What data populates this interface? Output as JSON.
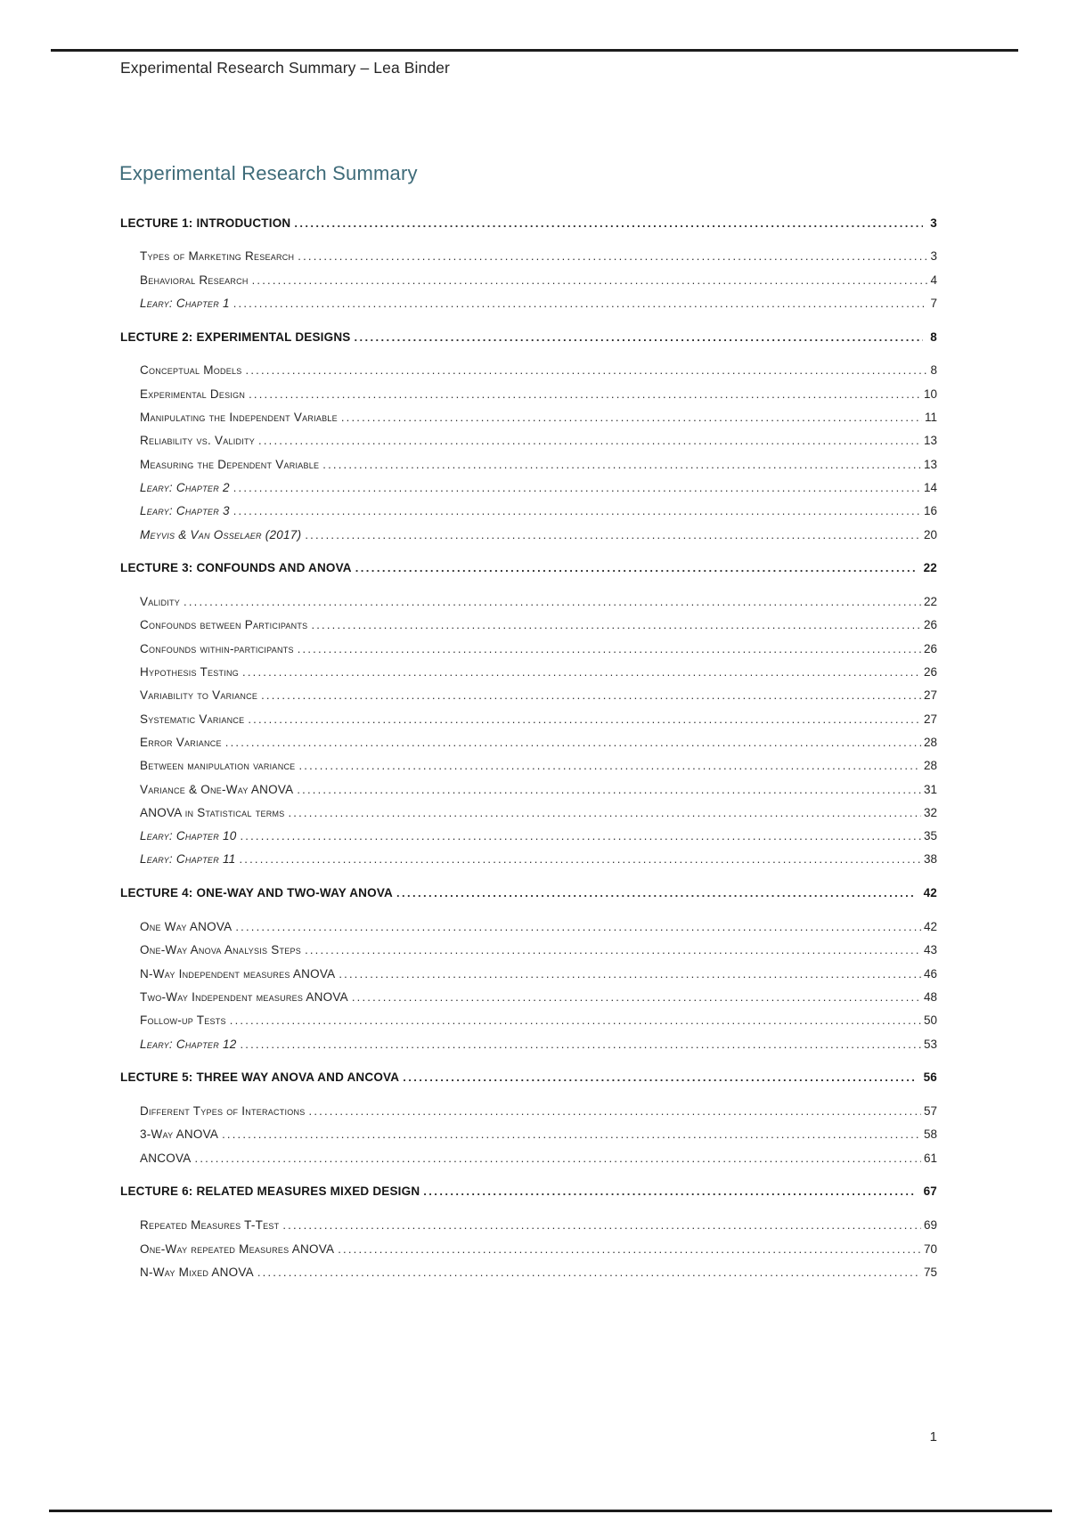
{
  "page": {
    "header": "Experimental Research Summary – Lea Binder",
    "title": "Experimental Research Summary",
    "title_color": "#3e6b79",
    "footer_page_number": "1"
  },
  "toc": {
    "sections": [
      {
        "label": "LECTURE 1: INTRODUCTION",
        "page": "3",
        "items": [
          {
            "label": "Types of Marketing Research",
            "page": "3",
            "italic": false
          },
          {
            "label": "Behavioral Research",
            "page": "4",
            "italic": false
          },
          {
            "label": "Leary: Chapter 1",
            "page": "7",
            "italic": true
          }
        ]
      },
      {
        "label": "LECTURE 2: EXPERIMENTAL DESIGNS",
        "page": "8",
        "items": [
          {
            "label": "Conceptual Models",
            "page": "8",
            "italic": false
          },
          {
            "label": "Experimental Design",
            "page": "10",
            "italic": false
          },
          {
            "label": "Manipulating the Independent Variable",
            "page": "11",
            "italic": false
          },
          {
            "label": "Reliability vs. Validity",
            "page": "13",
            "italic": false
          },
          {
            "label": "Measuring the Dependent Variable",
            "page": "13",
            "italic": false
          },
          {
            "label": "Leary: Chapter 2",
            "page": "14",
            "italic": true
          },
          {
            "label": "Leary: Chapter 3",
            "page": "16",
            "italic": true
          },
          {
            "label": "Meyvis & Van Osselaer (2017)",
            "page": "20",
            "italic": true
          }
        ]
      },
      {
        "label": "LECTURE 3: CONFOUNDS AND ANOVA",
        "page": "22",
        "items": [
          {
            "label": "Validity",
            "page": "22",
            "italic": false
          },
          {
            "label": "Confounds between Participants",
            "page": "26",
            "italic": false
          },
          {
            "label": "Confounds within-participants",
            "page": "26",
            "italic": false
          },
          {
            "label": "Hypothesis Testing",
            "page": "26",
            "italic": false
          },
          {
            "label": "Variability to Variance",
            "page": "27",
            "italic": false
          },
          {
            "label": "Systematic Variance",
            "page": "27",
            "italic": false
          },
          {
            "label": "Error Variance",
            "page": "28",
            "italic": false
          },
          {
            "label": "Between manipulation variance",
            "page": "28",
            "italic": false
          },
          {
            "label": "Variance & One-Way ANOVA",
            "page": "31",
            "italic": false
          },
          {
            "label": "ANOVA in Statistical terms",
            "page": "32",
            "italic": false
          },
          {
            "label": "Leary: Chapter 10",
            "page": "35",
            "italic": true
          },
          {
            "label": "Leary: Chapter 11",
            "page": "38",
            "italic": true
          }
        ]
      },
      {
        "label": "LECTURE 4: ONE-WAY AND TWO-WAY ANOVA",
        "page": "42",
        "items": [
          {
            "label": "One Way ANOVA",
            "page": "42",
            "italic": false
          },
          {
            "label": "One-Way Anova Analysis Steps",
            "page": "43",
            "italic": false
          },
          {
            "label": "N-Way Independent measures ANOVA",
            "page": "46",
            "italic": false
          },
          {
            "label": "Two-Way Independent measures ANOVA",
            "page": "48",
            "italic": false
          },
          {
            "label": "Follow-up Tests",
            "page": "50",
            "italic": false
          },
          {
            "label": "Leary: Chapter 12",
            "page": "53",
            "italic": true
          }
        ]
      },
      {
        "label": "LECTURE 5: THREE WAY ANOVA AND ANCOVA",
        "page": "56",
        "items": [
          {
            "label": "Different Types of Interactions",
            "page": "57",
            "italic": false
          },
          {
            "label": "3-Way ANOVA",
            "page": "58",
            "italic": false
          },
          {
            "label": "ANCOVA",
            "page": "61",
            "italic": false
          }
        ]
      },
      {
        "label": "LECTURE 6: RELATED MEASURES MIXED DESIGN",
        "page": "67",
        "items": [
          {
            "label": "Repeated Measures T-Test",
            "page": "69",
            "italic": false
          },
          {
            "label": "One-Way repeated Measures ANOVA",
            "page": "70",
            "italic": false
          },
          {
            "label": "N-Way Mixed ANOVA",
            "page": "75",
            "italic": false
          }
        ]
      }
    ]
  }
}
